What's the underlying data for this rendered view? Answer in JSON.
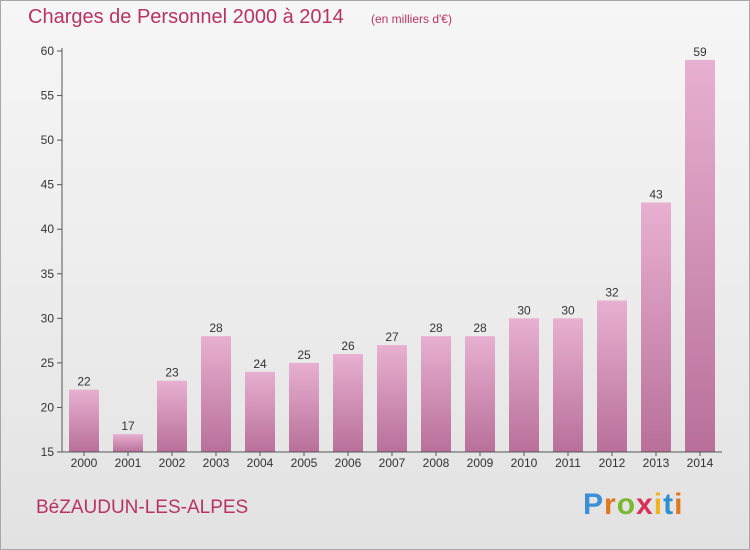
{
  "chart_data": {
    "type": "bar",
    "title": "Charges de Personnel 2000 à 2014",
    "subtitle": "(en milliers d'€)",
    "xlabel": "",
    "ylabel": "",
    "categories": [
      "2000",
      "2001",
      "2002",
      "2003",
      "2004",
      "2005",
      "2006",
      "2007",
      "2008",
      "2009",
      "2010",
      "2011",
      "2012",
      "2013",
      "2014"
    ],
    "values": [
      22,
      17,
      23,
      28,
      24,
      25,
      26,
      27,
      28,
      28,
      30,
      30,
      32,
      43,
      59
    ],
    "ylim": [
      15,
      60
    ],
    "yticks": [
      15,
      20,
      25,
      30,
      35,
      40,
      45,
      50,
      55,
      60
    ],
    "grid": false,
    "bar_color": "#dca0c2",
    "text_color": "#b83364"
  },
  "footer": {
    "commune": "BéZAUDUN-LES-ALPES"
  },
  "logo": {
    "letters": [
      "P",
      "r",
      "o",
      "x",
      "i",
      "t",
      "i"
    ],
    "colors": [
      "#3a8fd6",
      "#e0761e",
      "#7ab82e",
      "#d8305a",
      "#f0b320",
      "#2f8fd0",
      "#e0761e"
    ]
  }
}
